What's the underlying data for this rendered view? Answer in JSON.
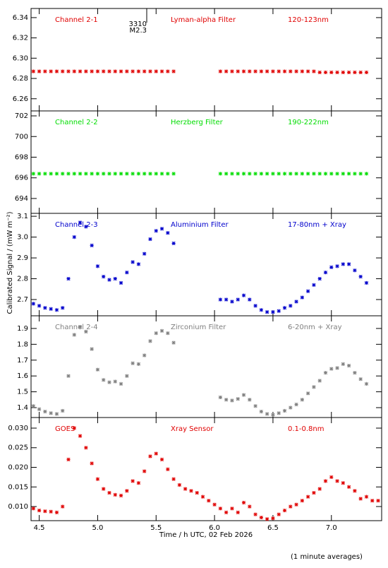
{
  "ylabel": "Calibrated Signal / (mW m⁻²)",
  "xlabel": "Time / h UTC, 02 Feb 2026",
  "note": "(1 minute averages)",
  "chart_data": [
    {
      "type": "scatter",
      "title": "Channel 2-1",
      "filter": "Lyman-alpha Filter",
      "band": "120-123nm",
      "color": "#e00000",
      "flare": {
        "x": 5.42,
        "labels": [
          "3310",
          "M2.3"
        ]
      },
      "ylim": [
        6.248,
        6.349
      ],
      "yticks": [
        6.26,
        6.28,
        {
          "value": 6.3,
          "label": "6.30"
        },
        6.32,
        6.34
      ],
      "x": [
        4.45,
        4.5,
        4.55,
        4.6,
        4.65,
        4.7,
        4.75,
        4.8,
        4.85,
        4.9,
        4.95,
        5.0,
        5.05,
        5.1,
        5.15,
        5.2,
        5.25,
        5.3,
        5.35,
        5.4,
        5.45,
        5.5,
        5.55,
        5.6,
        5.65,
        5.7,
        5.75,
        5.8,
        5.85,
        5.9,
        5.95,
        6.0,
        6.05,
        6.1,
        6.15,
        6.2,
        6.25,
        6.3,
        6.35,
        6.4,
        6.45,
        6.5,
        6.55,
        6.6,
        6.65,
        6.7,
        6.75,
        6.8,
        6.85,
        6.9,
        6.95,
        7.0,
        7.05,
        7.1,
        7.15,
        7.2,
        7.25,
        7.3
      ],
      "values": [
        6.287,
        6.287,
        6.287,
        6.287,
        6.287,
        6.287,
        6.287,
        6.287,
        6.287,
        6.287,
        6.287,
        6.287,
        6.287,
        6.287,
        6.287,
        6.287,
        6.287,
        6.287,
        6.287,
        6.287,
        6.287,
        6.287,
        6.287,
        6.287,
        6.287,
        null,
        null,
        null,
        null,
        null,
        null,
        null,
        6.287,
        6.287,
        6.287,
        6.287,
        6.287,
        6.287,
        6.287,
        6.287,
        6.287,
        6.287,
        6.287,
        6.287,
        6.287,
        6.287,
        6.287,
        6.287,
        6.287,
        6.286,
        6.286,
        6.286,
        6.286,
        6.286,
        6.286,
        6.286,
        6.286,
        6.286
      ]
    },
    {
      "type": "scatter",
      "title": "Channel 2-2",
      "filter": "Herzberg Filter",
      "band": "190-222nm",
      "color": "#00dd00",
      "ylim": [
        692.56,
        702.48
      ],
      "yticks": [
        694,
        696,
        698,
        700,
        702
      ],
      "x": [
        4.45,
        4.5,
        4.55,
        4.6,
        4.65,
        4.7,
        4.75,
        4.8,
        4.85,
        4.9,
        4.95,
        5.0,
        5.05,
        5.1,
        5.15,
        5.2,
        5.25,
        5.3,
        5.35,
        5.4,
        5.45,
        5.5,
        5.55,
        5.6,
        5.65,
        5.7,
        5.75,
        5.8,
        5.85,
        5.9,
        5.95,
        6.0,
        6.05,
        6.1,
        6.15,
        6.2,
        6.25,
        6.3,
        6.35,
        6.4,
        6.45,
        6.5,
        6.55,
        6.6,
        6.65,
        6.7,
        6.75,
        6.8,
        6.85,
        6.9,
        6.95,
        7.0,
        7.05,
        7.1,
        7.15,
        7.2,
        7.25,
        7.3
      ],
      "values": [
        696.4,
        696.4,
        696.4,
        696.4,
        696.4,
        696.4,
        696.4,
        696.4,
        696.4,
        696.4,
        696.4,
        696.4,
        696.4,
        696.4,
        696.4,
        696.4,
        696.4,
        696.4,
        696.4,
        696.4,
        696.4,
        696.4,
        696.4,
        696.4,
        696.4,
        null,
        null,
        null,
        null,
        null,
        null,
        null,
        696.4,
        696.4,
        696.4,
        696.4,
        696.4,
        696.4,
        696.4,
        696.4,
        696.4,
        696.4,
        696.4,
        696.4,
        696.4,
        696.4,
        696.4,
        696.4,
        696.4,
        696.4,
        696.4,
        696.4,
        696.4,
        696.4,
        696.4,
        696.4,
        696.4,
        696.4
      ]
    },
    {
      "type": "scatter",
      "title": "Channel 2-3",
      "filter": "Aluminium Filter",
      "band": "17-80nm + Xray",
      "color": "#0000cc",
      "ylim": [
        2.622,
        3.114
      ],
      "yticks": [
        2.7,
        2.8,
        2.9,
        {
          "value": 3,
          "label": "3.0"
        },
        3.1
      ],
      "x": [
        4.45,
        4.5,
        4.55,
        4.6,
        4.65,
        4.7,
        4.75,
        4.8,
        4.85,
        4.9,
        4.95,
        5.0,
        5.05,
        5.1,
        5.15,
        5.2,
        5.25,
        5.3,
        5.35,
        5.4,
        5.45,
        5.5,
        5.55,
        5.6,
        5.65,
        5.7,
        5.75,
        5.8,
        5.85,
        5.9,
        5.95,
        6.0,
        6.05,
        6.1,
        6.15,
        6.2,
        6.25,
        6.3,
        6.35,
        6.4,
        6.45,
        6.5,
        6.55,
        6.6,
        6.65,
        6.7,
        6.75,
        6.8,
        6.85,
        6.9,
        6.95,
        7.0,
        7.05,
        7.1,
        7.15,
        7.2,
        7.25,
        7.3
      ],
      "values": [
        2.68,
        2.67,
        2.66,
        2.655,
        2.65,
        2.66,
        2.8,
        3.0,
        3.07,
        3.05,
        2.96,
        2.86,
        2.81,
        2.795,
        2.8,
        2.78,
        2.83,
        2.88,
        2.87,
        2.92,
        2.99,
        3.03,
        3.04,
        3.02,
        2.97,
        null,
        null,
        null,
        null,
        null,
        null,
        null,
        2.7,
        2.7,
        2.69,
        2.7,
        2.72,
        2.7,
        2.67,
        2.65,
        2.64,
        2.64,
        2.645,
        2.66,
        2.67,
        2.69,
        2.71,
        2.74,
        2.77,
        2.8,
        2.83,
        2.855,
        2.86,
        2.87,
        2.87,
        2.84,
        2.81,
        2.78
      ]
    },
    {
      "type": "scatter",
      "title": "Channel 2-4",
      "filter": "Zirconium Filter",
      "band": "6-20nm + Xray",
      "color": "#808080",
      "ylim": [
        1.3375,
        1.98
      ],
      "yticks": [
        1.4,
        1.5,
        1.6,
        1.7,
        1.8,
        1.9
      ],
      "x": [
        4.45,
        4.5,
        4.55,
        4.6,
        4.65,
        4.7,
        4.75,
        4.8,
        4.85,
        4.9,
        4.95,
        5.0,
        5.05,
        5.1,
        5.15,
        5.2,
        5.25,
        5.3,
        5.35,
        5.4,
        5.45,
        5.5,
        5.55,
        5.6,
        5.65,
        5.7,
        5.75,
        5.8,
        5.85,
        5.9,
        5.95,
        6.0,
        6.05,
        6.1,
        6.15,
        6.2,
        6.25,
        6.3,
        6.35,
        6.4,
        6.45,
        6.5,
        6.55,
        6.6,
        6.65,
        6.7,
        6.75,
        6.8,
        6.85,
        6.9,
        6.95,
        7.0,
        7.05,
        7.1,
        7.15,
        7.2,
        7.25,
        7.3
      ],
      "values": [
        1.41,
        1.39,
        1.375,
        1.365,
        1.36,
        1.38,
        1.6,
        1.86,
        1.91,
        1.88,
        1.77,
        1.64,
        1.575,
        1.56,
        1.565,
        1.55,
        1.6,
        1.68,
        1.675,
        1.73,
        1.82,
        1.87,
        1.885,
        1.87,
        1.81,
        null,
        null,
        null,
        null,
        null,
        null,
        null,
        1.465,
        1.45,
        1.445,
        1.455,
        1.48,
        1.45,
        1.41,
        1.375,
        1.36,
        1.355,
        1.365,
        1.38,
        1.4,
        1.42,
        1.45,
        1.49,
        1.53,
        1.57,
        1.62,
        1.645,
        1.65,
        1.675,
        1.665,
        1.62,
        1.58,
        1.55
      ]
    },
    {
      "type": "scatter",
      "title": "GOES",
      "filter": "Xray Sensor",
      "band": "0.1-0.8nm",
      "color": "#e00000",
      "xlim": [
        4.43,
        7.43
      ],
      "xticks": [
        4.5,
        {
          "value": 5,
          "label": "5.0"
        },
        5.5,
        {
          "value": 6,
          "label": "6.0"
        },
        6.5,
        {
          "value": 7,
          "label": "7.0"
        }
      ],
      "ylim": [
        0.0064,
        0.0327
      ],
      "yticks": [
        {
          "value": 0.01,
          "label": "0.010"
        },
        {
          "value": 0.015,
          "label": "0.015"
        },
        {
          "value": 0.02,
          "label": "0.020"
        },
        {
          "value": 0.025,
          "label": "0.025"
        },
        {
          "value": 0.03,
          "label": "0.030"
        }
      ],
      "x": [
        4.45,
        4.5,
        4.55,
        4.6,
        4.65,
        4.7,
        4.75,
        4.8,
        4.85,
        4.9,
        4.95,
        5.0,
        5.05,
        5.1,
        5.15,
        5.2,
        5.25,
        5.3,
        5.35,
        5.4,
        5.45,
        5.5,
        5.55,
        5.6,
        5.65,
        5.7,
        5.75,
        5.8,
        5.85,
        5.9,
        5.95,
        6.0,
        6.05,
        6.1,
        6.15,
        6.2,
        6.25,
        6.3,
        6.35,
        6.4,
        6.45,
        6.5,
        6.55,
        6.6,
        6.65,
        6.7,
        6.75,
        6.8,
        6.85,
        6.9,
        6.95,
        7.0,
        7.05,
        7.1,
        7.15,
        7.2,
        7.25,
        7.3,
        7.35,
        7.4
      ],
      "values": [
        0.0095,
        0.009,
        0.0088,
        0.0087,
        0.0085,
        0.01,
        0.022,
        0.03,
        0.028,
        0.025,
        0.021,
        0.017,
        0.0145,
        0.0135,
        0.013,
        0.0128,
        0.014,
        0.0165,
        0.016,
        0.019,
        0.0228,
        0.0235,
        0.022,
        0.0195,
        0.017,
        0.0155,
        0.0145,
        0.014,
        0.0135,
        0.0125,
        0.0115,
        0.0105,
        0.0095,
        0.0085,
        0.0095,
        0.0085,
        0.011,
        0.01,
        0.008,
        0.0072,
        0.0068,
        0.007,
        0.008,
        0.009,
        0.01,
        0.0105,
        0.0115,
        0.0125,
        0.0135,
        0.0145,
        0.0165,
        0.0175,
        0.0165,
        0.016,
        0.015,
        0.014,
        0.012,
        0.0125,
        0.0115,
        0.0115
      ]
    }
  ]
}
